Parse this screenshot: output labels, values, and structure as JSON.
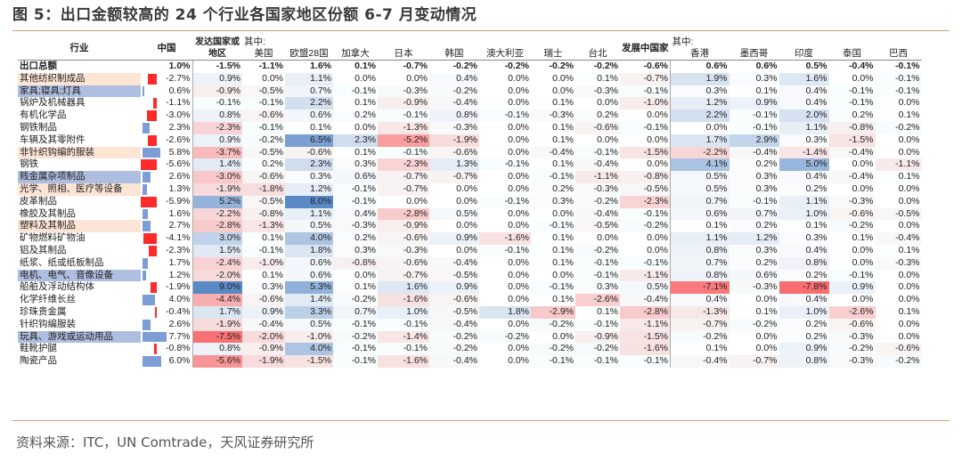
{
  "title": "图 5：出口金额较高的 24 个行业各国家地区份额 6-7 月变动情况",
  "source": "资料来源：ITC，UN Comtrade，天风证券研究所",
  "colors": {
    "neg_strong": "#f8696b",
    "pos_strong": "#5a8ac6",
    "china_neg_bar": "#ff2a2a",
    "china_pos_bar": "#7c9dd6",
    "name_highlight_orange": "#fde5d6",
    "name_highlight_blue": "#aebde0"
  },
  "header": {
    "industry": "行业",
    "china": "中国",
    "developed": "发达国家或地区",
    "developed_sub": "其中:",
    "developing": "发展中国家",
    "developing_sub": "其中:",
    "cols": [
      "美国",
      "欧盟28国",
      "加拿大",
      "日本",
      "韩国",
      "澳大利亚",
      "瑞士",
      "台北",
      "香港",
      "墨西哥",
      "印度",
      "泰国",
      "巴西"
    ]
  },
  "rows": [
    {
      "name": "出口总额",
      "hl": "",
      "v": [
        1.0,
        -1.5,
        -1.1,
        1.6,
        0.1,
        -0.7,
        -0.2,
        -0.2,
        -0.2,
        -0.2,
        -0.6,
        0.6,
        0.6,
        0.5,
        -0.4,
        -0.1
      ]
    },
    {
      "name": "其他纺织制成品",
      "hl": "o",
      "v": [
        -2.7,
        0.9,
        0.0,
        1.1,
        0.0,
        0.0,
        0.4,
        0.0,
        0.0,
        0.1,
        -0.7,
        1.9,
        0.3,
        1.6,
        0.0,
        -0.1
      ]
    },
    {
      "name": "家具;寝具;灯具",
      "hl": "b",
      "v": [
        0.6,
        -0.9,
        -0.5,
        0.7,
        -0.1,
        -0.3,
        -0.2,
        0.0,
        0.0,
        -0.3,
        -0.1,
        0.3,
        0.1,
        0.4,
        -0.1,
        -0.1
      ]
    },
    {
      "name": "锅炉及机械器具",
      "hl": "",
      "v": [
        -1.1,
        -0.1,
        -0.1,
        2.2,
        0.1,
        -0.9,
        -0.4,
        0.0,
        0.1,
        0.0,
        -1.0,
        1.2,
        0.9,
        0.4,
        -0.1,
        0.0
      ]
    },
    {
      "name": "有机化学品",
      "hl": "",
      "v": [
        -3.0,
        0.8,
        -0.6,
        0.6,
        0.2,
        -0.1,
        0.8,
        -0.1,
        -0.3,
        0.2,
        0.0,
        2.2,
        -0.1,
        2.0,
        0.2,
        0.1
      ]
    },
    {
      "name": "钢铁制品",
      "hl": "",
      "v": [
        2.3,
        -2.3,
        -0.1,
        0.1,
        0.0,
        -1.3,
        -0.3,
        0.0,
        0.1,
        -0.6,
        -0.1,
        0.0,
        -0.1,
        1.1,
        -0.8,
        -0.2
      ]
    },
    {
      "name": "车辆及其零附件",
      "hl": "",
      "v": [
        -2.6,
        0.9,
        -0.2,
        6.5,
        2.3,
        -5.2,
        -1.9,
        0.0,
        0.1,
        0.0,
        0.0,
        1.7,
        2.9,
        0.3,
        -1.5,
        0.0
      ]
    },
    {
      "name": "非针织钩编的服装",
      "hl": "o",
      "v": [
        5.8,
        -3.7,
        -0.5,
        -0.6,
        0.1,
        -0.1,
        -0.6,
        0.0,
        -0.4,
        -0.1,
        -1.5,
        -2.2,
        -0.4,
        -1.4,
        -0.4,
        0.0
      ]
    },
    {
      "name": "钢铁",
      "hl": "",
      "v": [
        -5.6,
        1.4,
        0.2,
        2.3,
        0.3,
        -2.3,
        1.3,
        -0.1,
        0.1,
        -0.4,
        0.0,
        4.1,
        0.2,
        5.0,
        0.0,
        -1.1
      ]
    },
    {
      "name": "贱金属杂项制品",
      "hl": "b",
      "v": [
        2.6,
        -3.0,
        -0.6,
        0.3,
        0.6,
        -0.7,
        -0.7,
        0.0,
        -0.1,
        -1.1,
        -0.8,
        0.5,
        0.3,
        0.4,
        -0.4,
        0.1
      ]
    },
    {
      "name": "光学、照相、医疗等设备",
      "hl": "o",
      "v": [
        1.3,
        -1.9,
        -1.8,
        1.2,
        -0.1,
        -0.7,
        0.0,
        0.0,
        0.2,
        -0.3,
        -0.5,
        0.5,
        0.3,
        0.2,
        0.0,
        0.0
      ]
    },
    {
      "name": "皮革制品",
      "hl": "",
      "v": [
        -5.9,
        5.2,
        -0.5,
        8.0,
        -0.1,
        0.0,
        0.0,
        -0.1,
        0.3,
        -0.2,
        -2.3,
        0.7,
        -0.1,
        1.1,
        -0.3,
        0.0
      ]
    },
    {
      "name": "橡胶及其制品",
      "hl": "",
      "v": [
        1.6,
        -2.2,
        -0.8,
        1.1,
        0.4,
        -2.8,
        0.5,
        0.0,
        0.0,
        -0.4,
        -0.1,
        0.6,
        0.7,
        1.0,
        -0.6,
        -0.5
      ]
    },
    {
      "name": "塑料及其制品",
      "hl": "o",
      "v": [
        2.7,
        -2.8,
        -1.3,
        0.5,
        -0.3,
        -0.9,
        0.0,
        0.0,
        -0.1,
        -0.5,
        -0.2,
        0.1,
        0.2,
        0.1,
        -0.2,
        0.0
      ]
    },
    {
      "name": "矿物燃料矿物油",
      "hl": "",
      "v": [
        -4.1,
        3.0,
        0.1,
        4.0,
        0.2,
        -0.6,
        0.9,
        -1.6,
        0.1,
        0.0,
        0.0,
        1.1,
        1.2,
        0.3,
        0.1,
        -0.4
      ]
    },
    {
      "name": "铝及其制品",
      "hl": "",
      "v": [
        -2.3,
        1.5,
        -0.1,
        1.8,
        0.3,
        -0.3,
        0.0,
        -0.1,
        0.1,
        -0.2,
        0.0,
        0.8,
        0.3,
        0.4,
        0.0,
        0.1
      ]
    },
    {
      "name": "纸浆、纸或纸板制品",
      "hl": "",
      "v": [
        1.7,
        -2.4,
        -1.0,
        0.6,
        -0.8,
        -0.6,
        -0.4,
        0.0,
        0.1,
        -0.1,
        -0.1,
        0.7,
        0.2,
        0.8,
        0.0,
        -0.3
      ]
    },
    {
      "name": "电机、电气、音像设备",
      "hl": "b",
      "v": [
        1.2,
        -2.0,
        0.1,
        0.6,
        0.0,
        -0.7,
        -0.5,
        0.0,
        0.0,
        -0.1,
        -1.1,
        0.8,
        0.6,
        0.2,
        -0.1,
        0.0
      ]
    },
    {
      "name": "船舶及浮动结构体",
      "hl": "",
      "v": [
        -1.9,
        9.0,
        0.3,
        5.3,
        0.1,
        1.6,
        0.9,
        0.0,
        -0.1,
        0.3,
        0.5,
        -7.1,
        -0.3,
        -7.8,
        0.9,
        0.0
      ]
    },
    {
      "name": "化学纤维长丝",
      "hl": "",
      "v": [
        4.0,
        -4.4,
        -0.6,
        1.4,
        -0.2,
        -1.6,
        -0.6,
        0.0,
        0.1,
        -2.6,
        -0.4,
        0.4,
        0.0,
        0.4,
        0.0,
        0.0
      ]
    },
    {
      "name": "珍珠贵金属",
      "hl": "",
      "v": [
        -0.4,
        1.7,
        0.9,
        3.3,
        0.7,
        1.0,
        -0.5,
        1.8,
        -2.9,
        0.1,
        -2.8,
        -1.3,
        0.1,
        1.0,
        -2.6,
        0.1
      ]
    },
    {
      "name": "针织钩编服装",
      "hl": "",
      "v": [
        2.6,
        -1.9,
        -0.4,
        0.5,
        -0.1,
        -0.1,
        -0.4,
        0.0,
        -0.2,
        -0.1,
        -1.1,
        -0.7,
        -0.2,
        0.2,
        -0.6,
        0.0
      ]
    },
    {
      "name": "玩具、游戏或运动用品",
      "hl": "b",
      "v": [
        7.7,
        -7.5,
        -2.0,
        -1.0,
        -0.2,
        -1.4,
        -0.2,
        -0.2,
        0.0,
        -0.9,
        -1.5,
        -0.2,
        0.0,
        0.2,
        -0.3,
        0.0
      ]
    },
    {
      "name": "鞋靴护腿",
      "hl": "",
      "v": [
        -0.8,
        0.8,
        -0.9,
        4.0,
        -0.1,
        -0.1,
        -0.2,
        0.0,
        -0.2,
        -0.2,
        -1.6,
        0.1,
        0.0,
        0.9,
        -0.2,
        -0.6
      ]
    },
    {
      "name": "陶瓷产品",
      "hl": "",
      "v": [
        6.0,
        -5.6,
        -1.9,
        -1.5,
        -0.1,
        -1.6,
        -0.4,
        0.0,
        -0.1,
        -0.1,
        -0.1,
        -0.4,
        -0.7,
        0.8,
        -0.3,
        -0.2
      ]
    }
  ]
}
